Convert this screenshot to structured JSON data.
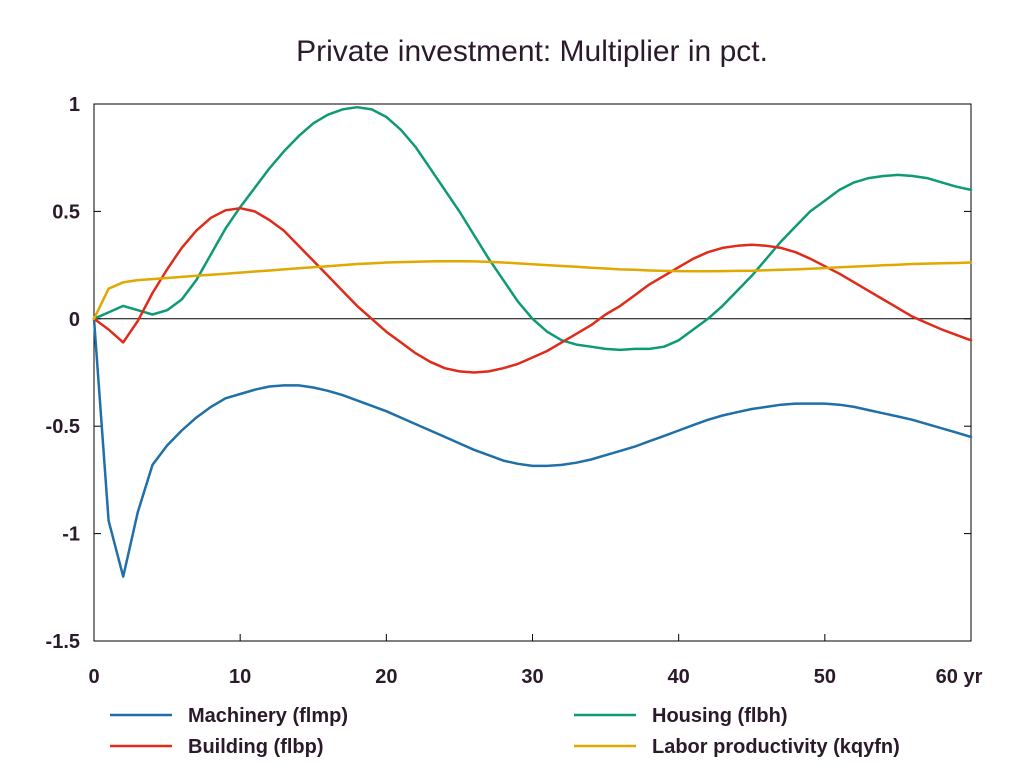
{
  "chart_data": {
    "type": "line",
    "title": "Private investment: Multiplier in pct.",
    "xlabel": "",
    "ylabel": "",
    "xlim": [
      0,
      60
    ],
    "ylim": [
      -1.5,
      1
    ],
    "x_ticks": [
      0,
      10,
      20,
      30,
      40,
      50,
      60
    ],
    "x_tick_labels": [
      "0",
      "10",
      "20",
      "30",
      "40",
      "50",
      "60 yr"
    ],
    "y_ticks": [
      -1.5,
      -1,
      -0.5,
      0,
      0.5,
      1
    ],
    "y_tick_labels": [
      "-1.5",
      "-1",
      "-0.5",
      "0",
      "0.5",
      "1"
    ],
    "grid": false,
    "zero_line": true,
    "legend_position": "bottom",
    "series": [
      {
        "name": "Machinery (flmp)",
        "color": "#1f6fa8",
        "x": [
          0,
          1,
          2,
          3,
          4,
          5,
          6,
          7,
          8,
          9,
          10,
          11,
          12,
          13,
          14,
          15,
          16,
          17,
          18,
          19,
          20,
          21,
          22,
          23,
          24,
          25,
          26,
          27,
          28,
          29,
          30,
          31,
          32,
          33,
          34,
          35,
          36,
          37,
          38,
          39,
          40,
          41,
          42,
          43,
          44,
          45,
          46,
          47,
          48,
          49,
          50,
          51,
          52,
          53,
          54,
          55,
          56,
          57,
          58,
          59,
          60
        ],
        "values": [
          0,
          -0.94,
          -1.2,
          -0.9,
          -0.68,
          -0.59,
          -0.52,
          -0.46,
          -0.41,
          -0.37,
          -0.35,
          -0.33,
          -0.315,
          -0.31,
          -0.31,
          -0.32,
          -0.335,
          -0.355,
          -0.38,
          -0.405,
          -0.43,
          -0.46,
          -0.49,
          -0.52,
          -0.55,
          -0.58,
          -0.61,
          -0.635,
          -0.66,
          -0.675,
          -0.685,
          -0.685,
          -0.68,
          -0.67,
          -0.655,
          -0.635,
          -0.615,
          -0.595,
          -0.57,
          -0.545,
          -0.52,
          -0.495,
          -0.47,
          -0.45,
          -0.435,
          -0.42,
          -0.41,
          -0.4,
          -0.395,
          -0.395,
          -0.395,
          -0.4,
          -0.41,
          -0.425,
          -0.44,
          -0.455,
          -0.47,
          -0.49,
          -0.51,
          -0.53,
          -0.55
        ]
      },
      {
        "name": "Housing (flbh)",
        "color": "#0e9a74",
        "x": [
          0,
          1,
          2,
          3,
          4,
          5,
          6,
          7,
          8,
          9,
          10,
          11,
          12,
          13,
          14,
          15,
          16,
          17,
          18,
          19,
          20,
          21,
          22,
          23,
          24,
          25,
          26,
          27,
          28,
          29,
          30,
          31,
          32,
          33,
          34,
          35,
          36,
          37,
          38,
          39,
          40,
          41,
          42,
          43,
          44,
          45,
          46,
          47,
          48,
          49,
          50,
          51,
          52,
          53,
          54,
          55,
          56,
          57,
          58,
          59,
          60
        ],
        "values": [
          0,
          0.03,
          0.06,
          0.04,
          0.02,
          0.04,
          0.09,
          0.18,
          0.3,
          0.42,
          0.52,
          0.61,
          0.7,
          0.78,
          0.85,
          0.91,
          0.95,
          0.975,
          0.985,
          0.975,
          0.94,
          0.88,
          0.8,
          0.7,
          0.6,
          0.5,
          0.39,
          0.28,
          0.18,
          0.08,
          0,
          -0.06,
          -0.1,
          -0.12,
          -0.13,
          -0.14,
          -0.145,
          -0.14,
          -0.14,
          -0.13,
          -0.1,
          -0.05,
          0,
          0.06,
          0.13,
          0.2,
          0.28,
          0.36,
          0.43,
          0.5,
          0.55,
          0.6,
          0.635,
          0.655,
          0.665,
          0.67,
          0.665,
          0.655,
          0.635,
          0.615,
          0.6
        ]
      },
      {
        "name": "Building (flbp)",
        "color": "#e02a1a",
        "x": [
          0,
          1,
          2,
          3,
          4,
          5,
          6,
          7,
          8,
          9,
          10,
          11,
          12,
          13,
          14,
          15,
          16,
          17,
          18,
          19,
          20,
          21,
          22,
          23,
          24,
          25,
          26,
          27,
          28,
          29,
          30,
          31,
          32,
          33,
          34,
          35,
          36,
          37,
          38,
          39,
          40,
          41,
          42,
          43,
          44,
          45,
          46,
          47,
          48,
          49,
          50,
          51,
          52,
          53,
          54,
          55,
          56,
          57,
          58,
          59,
          60
        ],
        "values": [
          0,
          -0.05,
          -0.11,
          -0.01,
          0.12,
          0.23,
          0.33,
          0.41,
          0.47,
          0.505,
          0.515,
          0.5,
          0.46,
          0.41,
          0.34,
          0.27,
          0.2,
          0.13,
          0.06,
          0,
          -0.06,
          -0.11,
          -0.16,
          -0.2,
          -0.23,
          -0.245,
          -0.25,
          -0.245,
          -0.23,
          -0.21,
          -0.18,
          -0.15,
          -0.11,
          -0.07,
          -0.03,
          0.02,
          0.06,
          0.11,
          0.16,
          0.2,
          0.24,
          0.28,
          0.31,
          0.33,
          0.34,
          0.345,
          0.34,
          0.33,
          0.31,
          0.28,
          0.245,
          0.21,
          0.17,
          0.13,
          0.09,
          0.05,
          0.01,
          -0.02,
          -0.05,
          -0.075,
          -0.1
        ]
      },
      {
        "name": "Labor productivity (kqyfn)",
        "color": "#e0a800",
        "x": [
          0,
          1,
          2,
          3,
          4,
          5,
          6,
          7,
          8,
          9,
          10,
          11,
          12,
          13,
          14,
          15,
          16,
          17,
          18,
          19,
          20,
          21,
          22,
          23,
          24,
          25,
          26,
          27,
          28,
          29,
          30,
          31,
          32,
          33,
          34,
          35,
          36,
          37,
          38,
          39,
          40,
          41,
          42,
          43,
          44,
          45,
          46,
          47,
          48,
          49,
          50,
          51,
          52,
          53,
          54,
          55,
          56,
          57,
          58,
          59,
          60
        ],
        "values": [
          0,
          0.14,
          0.17,
          0.18,
          0.185,
          0.19,
          0.195,
          0.2,
          0.205,
          0.21,
          0.215,
          0.22,
          0.225,
          0.23,
          0.235,
          0.24,
          0.245,
          0.25,
          0.255,
          0.258,
          0.262,
          0.264,
          0.266,
          0.267,
          0.268,
          0.268,
          0.267,
          0.265,
          0.262,
          0.258,
          0.254,
          0.25,
          0.246,
          0.242,
          0.238,
          0.234,
          0.23,
          0.228,
          0.225,
          0.223,
          0.222,
          0.221,
          0.221,
          0.222,
          0.223,
          0.224,
          0.226,
          0.228,
          0.23,
          0.233,
          0.236,
          0.24,
          0.243,
          0.246,
          0.249,
          0.252,
          0.255,
          0.257,
          0.259,
          0.26,
          0.262
        ]
      }
    ]
  }
}
